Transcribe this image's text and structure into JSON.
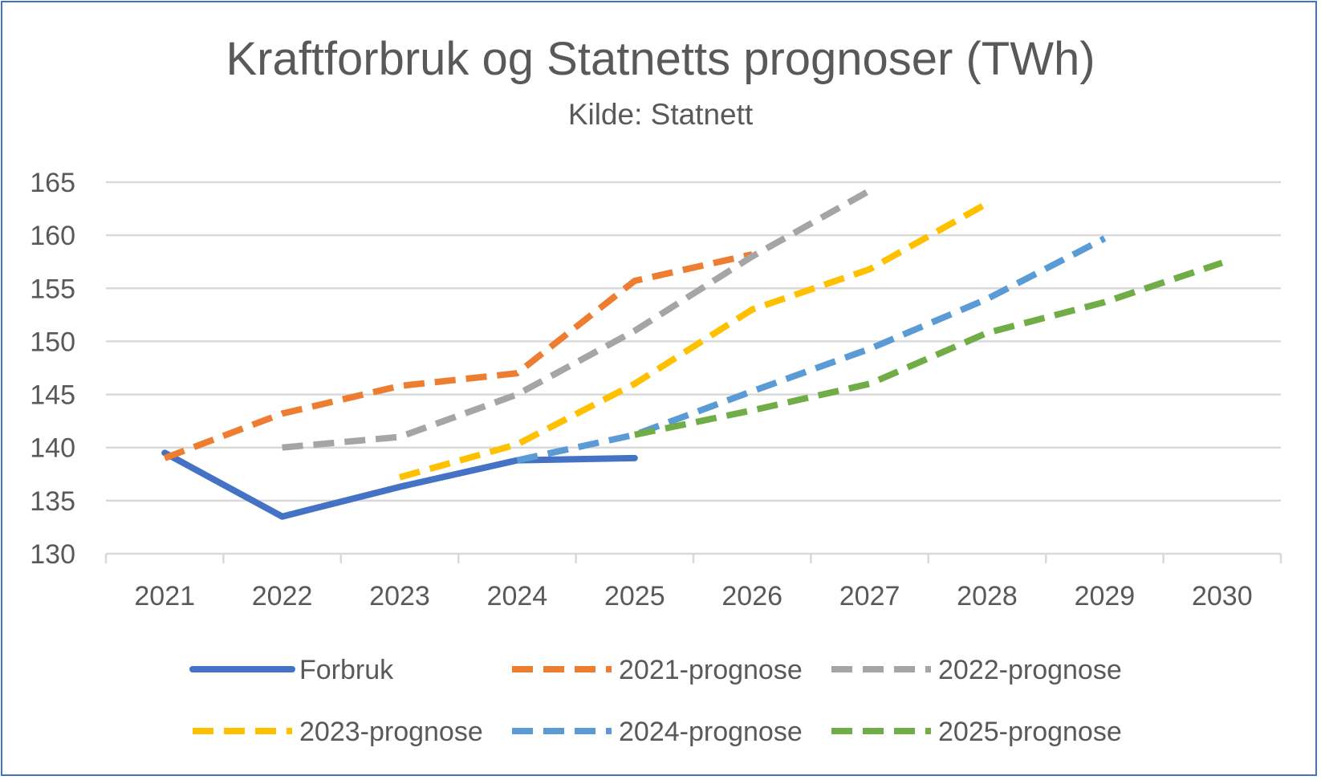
{
  "chart_data": {
    "type": "line",
    "title": "Kraftforbruk og Statnetts prognoser (TWh)",
    "subtitle": "Kilde: Statnett",
    "categories": [
      "2021",
      "2022",
      "2023",
      "2024",
      "2025",
      "2026",
      "2027",
      "2028",
      "2029",
      "2030"
    ],
    "ylim": [
      130,
      165
    ],
    "yticks": [
      130,
      135,
      140,
      145,
      150,
      155,
      160,
      165
    ],
    "grid": "horizontal",
    "legend_position": "bottom",
    "series": [
      {
        "name": "Forbruk",
        "color": "#4472c4",
        "dashed": false,
        "values": [
          139.5,
          133.5,
          136.3,
          138.8,
          139.0,
          null,
          null,
          null,
          null,
          null
        ]
      },
      {
        "name": "2021-prognose",
        "color": "#ed7d31",
        "dashed": true,
        "values": [
          139.0,
          143.2,
          145.8,
          147.0,
          155.7,
          158.2,
          null,
          null,
          null,
          null
        ]
      },
      {
        "name": "2022-prognose",
        "color": "#a5a5a5",
        "dashed": true,
        "values": [
          null,
          140.0,
          141.0,
          145.0,
          151.0,
          158.0,
          164.2,
          null,
          null,
          null
        ]
      },
      {
        "name": "2023-prognose",
        "color": "#ffc000",
        "dashed": true,
        "values": [
          null,
          null,
          137.2,
          140.3,
          146.0,
          153.0,
          156.8,
          163.0,
          null,
          null
        ]
      },
      {
        "name": "2024-prognose",
        "color": "#5b9bd5",
        "dashed": true,
        "values": [
          null,
          null,
          null,
          138.8,
          141.2,
          145.3,
          149.3,
          154.0,
          159.7,
          null
        ]
      },
      {
        "name": "2025-prognose",
        "color": "#70ad47",
        "dashed": true,
        "values": [
          null,
          null,
          null,
          null,
          141.2,
          143.5,
          146.0,
          150.8,
          153.7,
          157.4
        ]
      }
    ]
  }
}
